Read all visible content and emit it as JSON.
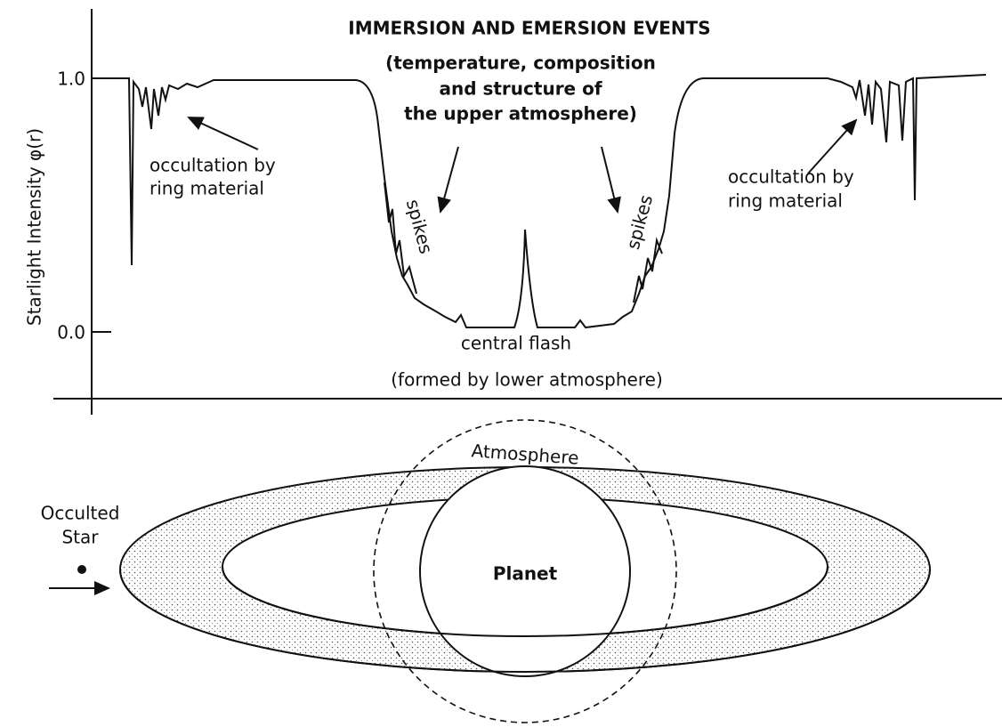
{
  "plot": {
    "title": "IMMERSION AND EMERSION EVENTS",
    "subtitle_lines": [
      "(temperature, composition",
      "and structure of",
      "the upper atmosphere)"
    ],
    "y_axis_label": "Starlight Intensity φ(r)",
    "y_ticks": [
      "1.0",
      "0.0"
    ],
    "left_annotation": [
      "occultation by",
      "ring material"
    ],
    "right_annotation": [
      "occultation by",
      "ring material"
    ],
    "left_spikes": "spikes",
    "right_spikes": "spikes",
    "central_flash": "central flash",
    "central_flash_note": "(formed by lower atmosphere)"
  },
  "diagram": {
    "star_label": [
      "Occulted",
      "Star"
    ],
    "atmosphere": "Atmosphere",
    "planet": "Planet"
  }
}
